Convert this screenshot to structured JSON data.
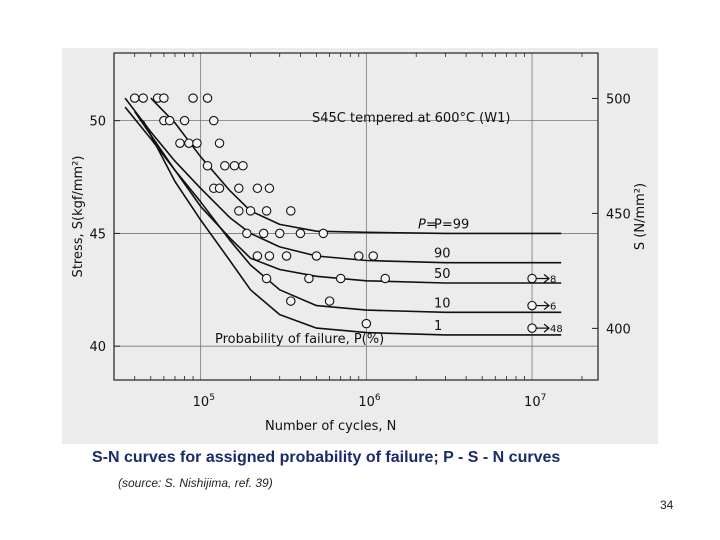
{
  "slide": {
    "caption": "S-N curves for assigned probability of failure; P - S - N curves",
    "source": "(source: S. Nishijima, ref. 39)",
    "page_number": "34"
  },
  "chart_data": {
    "type": "line",
    "title": "S45C tempered at 600°C (W1)",
    "xlabel": "Number of cycles, N",
    "ylabel": "Stress, S(kgf/mm²)",
    "ylabel_right": "S (N/mm²)",
    "x_scale": "log",
    "xlim": [
      30000,
      25000000
    ],
    "ylim": [
      38.5,
      53
    ],
    "grid": true,
    "x_ticks": [
      {
        "value": 100000,
        "base": "10",
        "exp": "5"
      },
      {
        "value": 1000000,
        "base": "10",
        "exp": "6"
      },
      {
        "value": 10000000,
        "base": "10",
        "exp": "7"
      }
    ],
    "y_ticks": [
      {
        "value": 40,
        "label": "40"
      },
      {
        "value": 45,
        "label": "45"
      },
      {
        "value": 50,
        "label": "50"
      }
    ],
    "y_ticks_right": [
      {
        "value": 400,
        "label": "400"
      },
      {
        "value": 450,
        "label": "450"
      },
      {
        "value": 500,
        "label": "500"
      }
    ],
    "legend_title": "Probability of failure, P(%)",
    "series": [
      {
        "name": "P=99",
        "x": [
          50000,
          70000,
          100000,
          150000,
          200000,
          300000,
          500000,
          1000000,
          3000000,
          15000000
        ],
        "y": [
          51.0,
          49.9,
          48.4,
          46.9,
          46.0,
          45.4,
          45.1,
          45.05,
          45.0,
          45.0
        ]
      },
      {
        "name": "90",
        "x": [
          35000,
          50000,
          70000,
          100000,
          150000,
          200000,
          300000,
          500000,
          1000000,
          3000000,
          15000000
        ],
        "y": [
          51.0,
          49.5,
          48.2,
          47.0,
          45.7,
          45.0,
          44.4,
          44.0,
          43.8,
          43.7,
          43.7
        ]
      },
      {
        "name": "50",
        "x": [
          35000,
          50000,
          70000,
          100000,
          150000,
          200000,
          300000,
          500000,
          1000000,
          3000000,
          15000000
        ],
        "y": [
          50.6,
          49.2,
          47.8,
          46.2,
          44.8,
          43.9,
          43.4,
          43.1,
          42.9,
          42.8,
          42.8
        ]
      },
      {
        "name": "10",
        "x": [
          40000,
          70000,
          100000,
          150000,
          200000,
          300000,
          500000,
          1000000,
          3000000,
          15000000
        ],
        "y": [
          50.4,
          47.8,
          46.4,
          44.7,
          43.6,
          42.5,
          41.8,
          41.6,
          41.5,
          41.5
        ]
      },
      {
        "name": "1",
        "x": [
          45000,
          70000,
          100000,
          150000,
          200000,
          300000,
          500000,
          1000000,
          3000000,
          15000000
        ],
        "y": [
          50.0,
          47.3,
          45.6,
          43.8,
          42.5,
          41.4,
          40.8,
          40.6,
          40.5,
          40.5
        ]
      }
    ],
    "points": [
      {
        "x": 40000,
        "y": 51
      },
      {
        "x": 45000,
        "y": 51
      },
      {
        "x": 55000,
        "y": 51
      },
      {
        "x": 60000,
        "y": 51
      },
      {
        "x": 90000,
        "y": 51
      },
      {
        "x": 110000,
        "y": 51
      },
      {
        "x": 60000,
        "y": 50
      },
      {
        "x": 65000,
        "y": 50
      },
      {
        "x": 80000,
        "y": 50
      },
      {
        "x": 120000,
        "y": 50
      },
      {
        "x": 75000,
        "y": 49
      },
      {
        "x": 85000,
        "y": 49
      },
      {
        "x": 95000,
        "y": 49
      },
      {
        "x": 130000,
        "y": 49
      },
      {
        "x": 110000,
        "y": 48
      },
      {
        "x": 140000,
        "y": 48
      },
      {
        "x": 160000,
        "y": 48
      },
      {
        "x": 180000,
        "y": 48
      },
      {
        "x": 120000,
        "y": 47
      },
      {
        "x": 130000,
        "y": 47
      },
      {
        "x": 170000,
        "y": 47
      },
      {
        "x": 220000,
        "y": 47
      },
      {
        "x": 260000,
        "y": 47
      },
      {
        "x": 170000,
        "y": 46
      },
      {
        "x": 200000,
        "y": 46
      },
      {
        "x": 250000,
        "y": 46
      },
      {
        "x": 350000,
        "y": 46
      },
      {
        "x": 190000,
        "y": 45
      },
      {
        "x": 240000,
        "y": 45
      },
      {
        "x": 300000,
        "y": 45
      },
      {
        "x": 400000,
        "y": 45
      },
      {
        "x": 550000,
        "y": 45
      },
      {
        "x": 220000,
        "y": 44
      },
      {
        "x": 260000,
        "y": 44
      },
      {
        "x": 330000,
        "y": 44
      },
      {
        "x": 500000,
        "y": 44
      },
      {
        "x": 900000,
        "y": 44
      },
      {
        "x": 1100000,
        "y": 44
      },
      {
        "x": 250000,
        "y": 43
      },
      {
        "x": 450000,
        "y": 43
      },
      {
        "x": 700000,
        "y": 43
      },
      {
        "x": 1300000,
        "y": 43
      },
      {
        "x": 350000,
        "y": 42
      },
      {
        "x": 600000,
        "y": 42
      },
      {
        "x": 1000000,
        "y": 41
      }
    ],
    "runouts": [
      {
        "x": 10000000,
        "y": 43,
        "count": "8"
      },
      {
        "x": 10000000,
        "y": 41.8,
        "count": "6"
      },
      {
        "x": 10000000,
        "y": 40.8,
        "count": "48"
      }
    ],
    "annotations": {
      "p99_prefix": "P="
    }
  }
}
